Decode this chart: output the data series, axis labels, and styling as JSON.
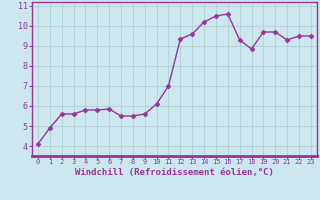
{
  "x": [
    0,
    1,
    2,
    3,
    4,
    5,
    6,
    7,
    8,
    9,
    10,
    11,
    12,
    13,
    14,
    15,
    16,
    17,
    18,
    19,
    20,
    21,
    22,
    23
  ],
  "y": [
    4.1,
    4.9,
    5.6,
    5.6,
    5.8,
    5.8,
    5.85,
    5.5,
    5.5,
    5.6,
    6.1,
    7.0,
    9.35,
    9.6,
    10.2,
    10.5,
    10.6,
    9.3,
    8.85,
    9.7,
    9.7,
    9.3,
    9.5,
    9.5
  ],
  "line_color": "#993399",
  "marker": "D",
  "marker_size": 2.5,
  "bg_color": "#cce8ee",
  "grid_color": "#aacccc",
  "xlabel": "Windchill (Refroidissement éolien,°C)",
  "xlim": [
    -0.5,
    23.5
  ],
  "ylim": [
    3.5,
    11.2
  ],
  "yticks": [
    4,
    5,
    6,
    7,
    8,
    9,
    10,
    11
  ],
  "xticks": [
    0,
    1,
    2,
    3,
    4,
    5,
    6,
    7,
    8,
    9,
    10,
    11,
    12,
    13,
    14,
    15,
    16,
    17,
    18,
    19,
    20,
    21,
    22,
    23
  ],
  "axis_color": "#993399",
  "tick_color": "#993399",
  "label_color": "#993399",
  "spine_color": "#993399",
  "bottom_bar_color": "#993399"
}
